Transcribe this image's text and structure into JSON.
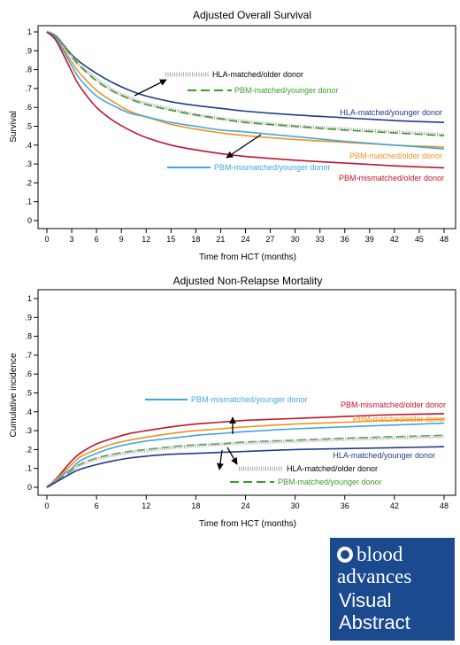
{
  "chart_data": [
    {
      "type": "line",
      "title": "Adjusted Overall Survival",
      "xlabel": "Time from HCT (months)",
      "ylabel": "Survival",
      "xlim": [
        0,
        48
      ],
      "ylim": [
        0,
        1
      ],
      "xticks": [
        0,
        3,
        6,
        9,
        12,
        15,
        18,
        21,
        24,
        27,
        30,
        33,
        36,
        39,
        42,
        45,
        48
      ],
      "yticks": [
        0,
        0.1,
        0.2,
        0.3,
        0.4,
        0.5,
        0.6,
        0.7,
        0.8,
        0.9,
        1
      ],
      "yticklabels": [
        "0",
        ".1",
        ".2",
        ".3",
        ".4",
        ".5",
        ".6",
        ".7",
        ".8",
        ".9",
        "1"
      ],
      "grid": false,
      "series": [
        {
          "name": "HLA-matched/younger donor",
          "color": "#1f3a8a",
          "dash": "solid",
          "x": [
            0,
            1,
            2,
            3,
            4,
            6,
            8,
            10,
            12,
            15,
            18,
            21,
            24,
            30,
            36,
            42,
            48
          ],
          "y": [
            1,
            0.98,
            0.93,
            0.88,
            0.84,
            0.78,
            0.73,
            0.69,
            0.66,
            0.63,
            0.61,
            0.595,
            0.58,
            0.56,
            0.545,
            0.53,
            0.52
          ]
        },
        {
          "name": "HLA-matched/older donor",
          "color": "#aaaaaa",
          "dash": "dotted",
          "x": [
            0,
            1,
            2,
            3,
            4,
            6,
            8,
            10,
            12,
            15,
            18,
            21,
            24,
            30,
            36,
            42,
            48
          ],
          "y": [
            1,
            0.98,
            0.93,
            0.87,
            0.82,
            0.75,
            0.69,
            0.65,
            0.62,
            0.59,
            0.56,
            0.54,
            0.525,
            0.5,
            0.485,
            0.47,
            0.455
          ]
        },
        {
          "name": "PBM-matched/younger donor",
          "color": "#3a9a2c",
          "dash": "dashed",
          "x": [
            0,
            1,
            2,
            3,
            4,
            6,
            8,
            10,
            12,
            15,
            18,
            21,
            24,
            30,
            36,
            42,
            48
          ],
          "y": [
            1,
            0.98,
            0.93,
            0.87,
            0.82,
            0.74,
            0.685,
            0.645,
            0.615,
            0.585,
            0.56,
            0.54,
            0.52,
            0.5,
            0.48,
            0.465,
            0.45
          ]
        },
        {
          "name": "PBM-matched/older donor",
          "color": "#f0921e",
          "dash": "solid",
          "x": [
            0,
            1,
            2,
            3,
            4,
            6,
            8,
            10,
            12,
            15,
            18,
            21,
            24,
            30,
            36,
            42,
            48
          ],
          "y": [
            1,
            0.97,
            0.91,
            0.84,
            0.78,
            0.69,
            0.63,
            0.58,
            0.55,
            0.51,
            0.485,
            0.465,
            0.45,
            0.43,
            0.415,
            0.4,
            0.39
          ]
        },
        {
          "name": "PBM-mismatched/younger donor",
          "color": "#3fa7dd",
          "dash": "solid",
          "x": [
            0,
            1,
            2,
            3,
            4,
            6,
            8,
            10,
            12,
            15,
            18,
            21,
            24,
            30,
            36,
            42,
            48
          ],
          "y": [
            1,
            0.97,
            0.9,
            0.82,
            0.75,
            0.66,
            0.61,
            0.57,
            0.55,
            0.52,
            0.5,
            0.48,
            0.47,
            0.445,
            0.42,
            0.4,
            0.38
          ]
        },
        {
          "name": "PBM-mismatched/older donor",
          "color": "#c0142a",
          "dash": "solid",
          "x": [
            0,
            1,
            2,
            3,
            4,
            6,
            8,
            10,
            12,
            15,
            18,
            21,
            24,
            30,
            36,
            42,
            48
          ],
          "y": [
            1,
            0.96,
            0.88,
            0.79,
            0.71,
            0.6,
            0.53,
            0.48,
            0.44,
            0.4,
            0.375,
            0.355,
            0.34,
            0.32,
            0.305,
            0.29,
            0.28
          ]
        }
      ],
      "labels": {
        "hla_older": "HLA-matched/older donor",
        "pbm_younger": "PBM-matched/younger donor",
        "hla_younger": "HLA-matched/younger donor",
        "pbm_older": "PBM-matched/older donor",
        "pbmmis_younger": "PBM-mismatched/younger donor",
        "pbmmis_older": "PBM-mismatched/older donor"
      }
    },
    {
      "type": "line",
      "title": "Adjusted Non-Relapse Mortality",
      "xlabel": "Time from HCT (months)",
      "ylabel": "Cumulative incidence",
      "xlim": [
        0,
        48
      ],
      "ylim": [
        0,
        1
      ],
      "xticks": [
        0,
        6,
        12,
        18,
        24,
        30,
        36,
        42,
        48
      ],
      "yticks": [
        0,
        0.1,
        0.2,
        0.3,
        0.4,
        0.5,
        0.6,
        0.7,
        0.8,
        0.9,
        1
      ],
      "yticklabels": [
        "0",
        ".1",
        ".2",
        ".3",
        ".4",
        ".5",
        ".6",
        ".7",
        ".8",
        ".9",
        "1"
      ],
      "grid": false,
      "series": [
        {
          "name": "PBM-mismatched/older donor",
          "color": "#c0142a",
          "dash": "solid",
          "x": [
            0,
            1,
            2,
            3,
            4,
            6,
            8,
            10,
            12,
            15,
            18,
            21,
            24,
            30,
            36,
            42,
            48
          ],
          "y": [
            0,
            0.04,
            0.09,
            0.14,
            0.18,
            0.23,
            0.26,
            0.285,
            0.3,
            0.32,
            0.335,
            0.345,
            0.355,
            0.365,
            0.375,
            0.385,
            0.39
          ]
        },
        {
          "name": "PBM-matched/older donor",
          "color": "#f0921e",
          "dash": "solid",
          "x": [
            0,
            1,
            2,
            3,
            4,
            6,
            8,
            10,
            12,
            15,
            18,
            21,
            24,
            30,
            36,
            42,
            48
          ],
          "y": [
            0,
            0.035,
            0.08,
            0.12,
            0.16,
            0.2,
            0.23,
            0.25,
            0.265,
            0.285,
            0.3,
            0.31,
            0.32,
            0.335,
            0.345,
            0.355,
            0.36
          ]
        },
        {
          "name": "PBM-mismatched/younger donor",
          "color": "#3fa7dd",
          "dash": "solid",
          "x": [
            0,
            1,
            2,
            3,
            4,
            6,
            8,
            10,
            12,
            15,
            18,
            21,
            24,
            30,
            36,
            42,
            48
          ],
          "y": [
            0,
            0.03,
            0.07,
            0.1,
            0.14,
            0.18,
            0.21,
            0.23,
            0.245,
            0.26,
            0.275,
            0.285,
            0.295,
            0.31,
            0.32,
            0.33,
            0.34
          ]
        },
        {
          "name": "PBM-matched/younger donor",
          "color": "#3a9a2c",
          "dash": "dashed",
          "x": [
            0,
            1,
            2,
            3,
            4,
            6,
            8,
            10,
            12,
            15,
            18,
            21,
            24,
            30,
            36,
            42,
            48
          ],
          "y": [
            0,
            0.03,
            0.06,
            0.09,
            0.12,
            0.155,
            0.175,
            0.19,
            0.2,
            0.215,
            0.225,
            0.23,
            0.24,
            0.25,
            0.26,
            0.268,
            0.275
          ]
        },
        {
          "name": "HLA-matched/older donor",
          "color": "#aaaaaa",
          "dash": "dotted",
          "x": [
            0,
            1,
            2,
            3,
            4,
            6,
            8,
            10,
            12,
            15,
            18,
            21,
            24,
            30,
            36,
            42,
            48
          ],
          "y": [
            0,
            0.03,
            0.06,
            0.09,
            0.12,
            0.15,
            0.17,
            0.185,
            0.195,
            0.21,
            0.22,
            0.228,
            0.235,
            0.245,
            0.255,
            0.262,
            0.27
          ]
        },
        {
          "name": "HLA-matched/younger donor",
          "color": "#1f3a8a",
          "dash": "solid",
          "x": [
            0,
            1,
            2,
            3,
            4,
            6,
            8,
            10,
            12,
            15,
            18,
            21,
            24,
            30,
            36,
            42,
            48
          ],
          "y": [
            0,
            0.025,
            0.05,
            0.075,
            0.095,
            0.12,
            0.14,
            0.155,
            0.165,
            0.175,
            0.18,
            0.185,
            0.19,
            0.2,
            0.205,
            0.21,
            0.215
          ]
        }
      ],
      "labels": {
        "pbmmis_younger": "PBM-mismatched/younger donor",
        "pbmmis_older": "PBM-mismatched/older donor",
        "pbm_older": "PBM-matched/older donor",
        "hla_younger": "HLA-matched/younger donor",
        "hla_older": "HLA-matched/older donor",
        "pbm_younger": "PBM-matched/younger donor"
      }
    }
  ],
  "logo": {
    "line1": "blood",
    "line2": "advances",
    "line3": "Visual",
    "line4": "Abstract"
  }
}
